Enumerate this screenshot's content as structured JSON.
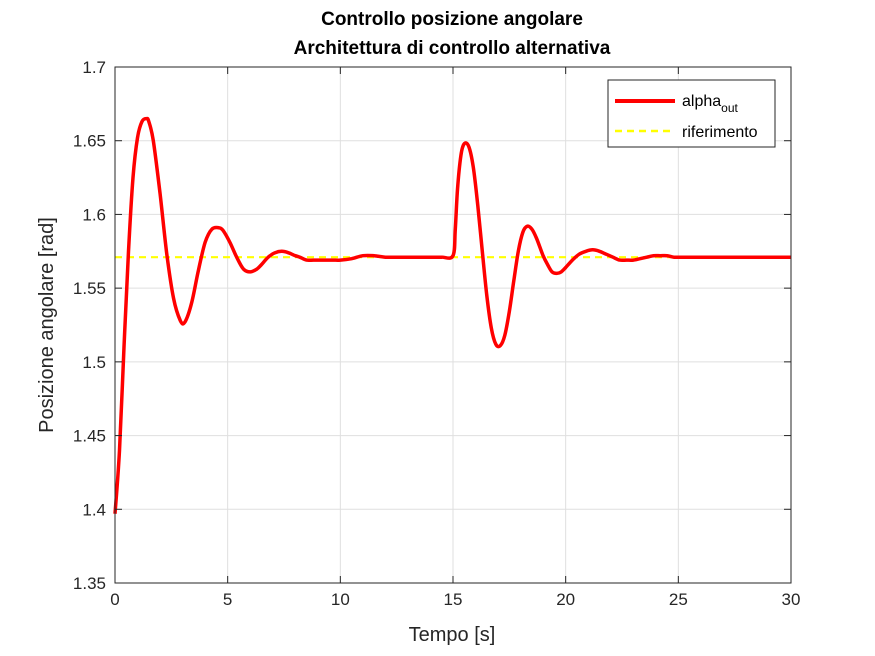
{
  "chart_data": {
    "type": "line",
    "title": [
      "Controllo posizione angolare",
      "Architettura di controllo alternativa"
    ],
    "xlabel": "Tempo [s]",
    "ylabel": "Posizione angolare [rad]",
    "xlim": [
      0,
      30
    ],
    "ylim": [
      1.35,
      1.7
    ],
    "xticks": [
      0,
      5,
      10,
      15,
      20,
      25,
      30
    ],
    "yticks": [
      1.35,
      1.4,
      1.45,
      1.5,
      1.55,
      1.6,
      1.65,
      1.7
    ],
    "grid": true,
    "legend_position": "top-right",
    "series": [
      {
        "name": "alpha_out",
        "legend_base": "alpha",
        "legend_sub": "out",
        "color": "#ff0000",
        "style": "solid",
        "x": [
          0,
          0.2,
          0.4,
          0.6,
          0.8,
          1.0,
          1.2,
          1.4,
          1.5,
          1.7,
          2.0,
          2.3,
          2.6,
          2.9,
          3.1,
          3.4,
          3.7,
          4.0,
          4.3,
          4.6,
          4.8,
          5.1,
          5.4,
          5.7,
          6.0,
          6.3,
          6.5,
          6.8,
          7.1,
          7.4,
          7.7,
          8.0,
          8.2,
          8.5,
          8.8,
          9.1,
          9.4,
          9.7,
          10.0,
          10.5,
          11.0,
          11.5,
          12.0,
          12.5,
          13.0,
          13.5,
          14.0,
          14.5,
          15.0,
          15.1,
          15.2,
          15.35,
          15.5,
          15.7,
          15.9,
          16.1,
          16.3,
          16.5,
          16.7,
          16.9,
          17.1,
          17.3,
          17.5,
          17.7,
          17.9,
          18.1,
          18.3,
          18.5,
          18.7,
          19.0,
          19.2,
          19.4,
          19.6,
          19.8,
          20.0,
          20.3,
          20.6,
          20.9,
          21.2,
          21.5,
          21.8,
          22.1,
          22.4,
          22.7,
          23.0,
          23.3,
          23.6,
          23.9,
          24.2,
          24.5,
          24.8,
          25.1,
          25.4,
          25.7,
          26.0,
          26.5,
          27.0,
          27.5,
          28.0,
          28.5,
          29.0,
          29.5,
          30.0
        ],
        "y": [
          1.397,
          1.44,
          1.51,
          1.575,
          1.625,
          1.652,
          1.663,
          1.665,
          1.663,
          1.65,
          1.614,
          1.573,
          1.543,
          1.528,
          1.527,
          1.54,
          1.562,
          1.581,
          1.59,
          1.591,
          1.589,
          1.581,
          1.571,
          1.563,
          1.561,
          1.563,
          1.566,
          1.571,
          1.574,
          1.575,
          1.574,
          1.572,
          1.571,
          1.569,
          1.569,
          1.569,
          1.569,
          1.569,
          1.569,
          1.57,
          1.572,
          1.572,
          1.571,
          1.571,
          1.571,
          1.571,
          1.571,
          1.571,
          1.572,
          1.59,
          1.617,
          1.64,
          1.648,
          1.646,
          1.632,
          1.606,
          1.575,
          1.545,
          1.523,
          1.512,
          1.511,
          1.518,
          1.534,
          1.555,
          1.575,
          1.588,
          1.592,
          1.59,
          1.584,
          1.572,
          1.566,
          1.561,
          1.56,
          1.561,
          1.564,
          1.569,
          1.573,
          1.575,
          1.576,
          1.575,
          1.573,
          1.571,
          1.569,
          1.569,
          1.569,
          1.57,
          1.571,
          1.572,
          1.572,
          1.572,
          1.571,
          1.571,
          1.571,
          1.571,
          1.571,
          1.571,
          1.571,
          1.571,
          1.571,
          1.571,
          1.571,
          1.571,
          1.571
        ]
      },
      {
        "name": "riferimento",
        "color": "#ffff00",
        "style": "dashed",
        "x": [
          0,
          30
        ],
        "y": [
          1.571,
          1.571
        ]
      }
    ]
  }
}
